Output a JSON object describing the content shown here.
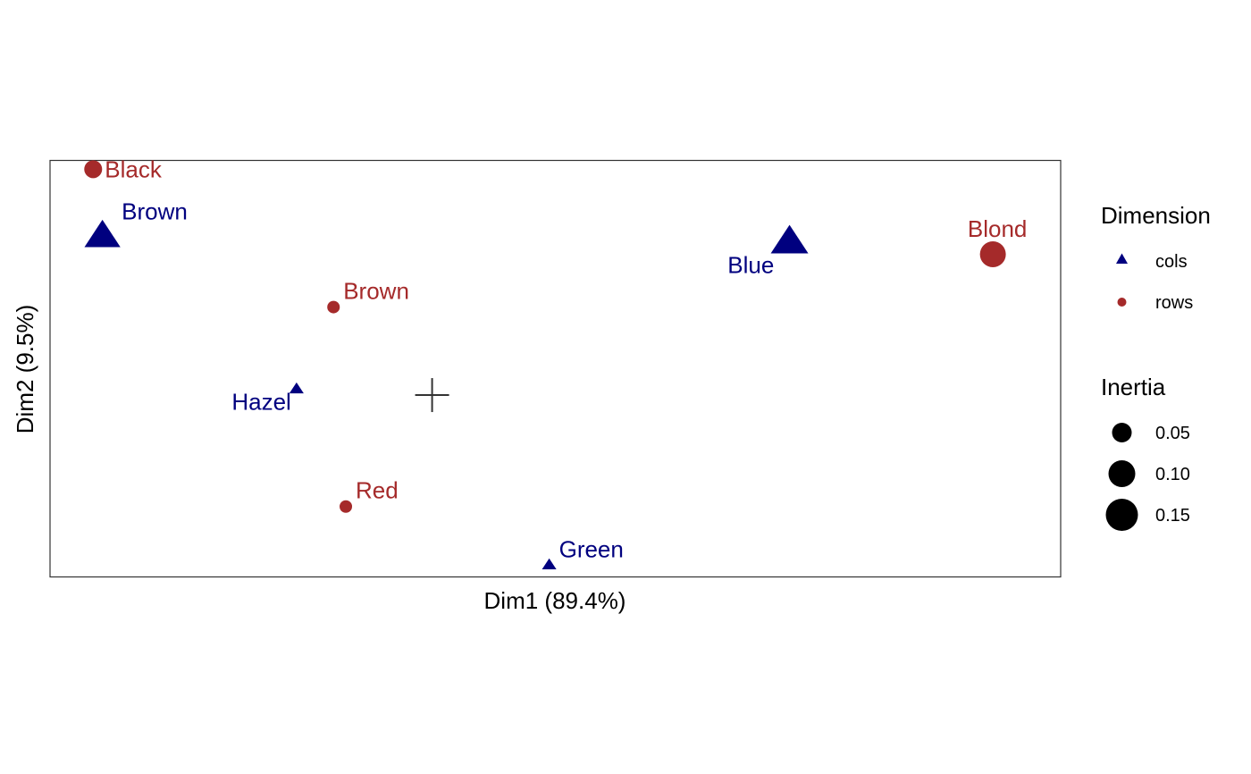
{
  "chart_data": {
    "type": "scatter",
    "title": "",
    "xlabel": "Dim1 (89.4%)",
    "ylabel": "Dim2 (9.5%)",
    "xlim": [
      -0.62,
      1.02
    ],
    "ylim": [
      -0.31,
      0.4
    ],
    "grid": false,
    "colors": {
      "cols": "#00007F",
      "rows": "#A52A2A",
      "origin": "#333333"
    },
    "series": [
      {
        "name": "cols",
        "shape": "triangle",
        "points": [
          {
            "label": "Brown",
            "x": -0.535,
            "y": 0.27,
            "inertia": 0.16
          },
          {
            "label": "Blue",
            "x": 0.58,
            "y": 0.26,
            "inertia": 0.17
          },
          {
            "label": "Hazel",
            "x": -0.22,
            "y": 0.01,
            "inertia": 0.02
          },
          {
            "label": "Green",
            "x": 0.19,
            "y": -0.29,
            "inertia": 0.02
          }
        ]
      },
      {
        "name": "rows",
        "shape": "circle",
        "points": [
          {
            "label": "Black",
            "x": -0.55,
            "y": 0.385,
            "inertia": 0.06
          },
          {
            "label": "Blond",
            "x": 0.91,
            "y": 0.24,
            "inertia": 0.12
          },
          {
            "label": "Brown",
            "x": -0.16,
            "y": 0.15,
            "inertia": 0.02
          },
          {
            "label": "Red",
            "x": -0.14,
            "y": -0.19,
            "inertia": 0.02
          }
        ]
      }
    ],
    "origin_marker": {
      "x": 0,
      "y": 0
    },
    "legend": {
      "placement": "right",
      "dimension_title": "Dimension",
      "dimension_entries": [
        "cols",
        "rows"
      ],
      "inertia_title": "Inertia",
      "inertia_entries": [
        "0.05",
        "0.10",
        "0.15"
      ]
    }
  }
}
